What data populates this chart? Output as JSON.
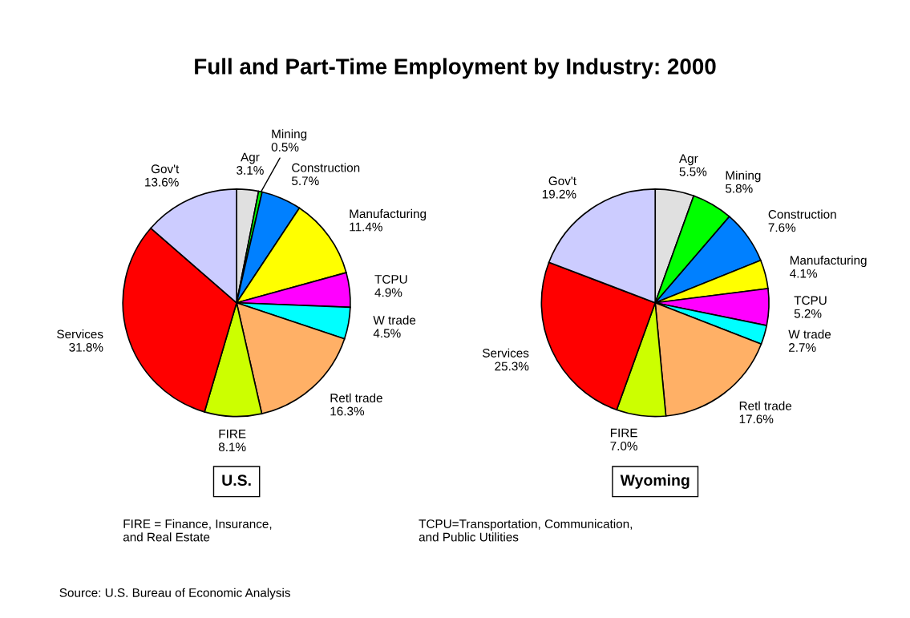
{
  "chart_data": [
    {
      "type": "pie",
      "title": "Full and Part-Time Employment by Industry: 2000",
      "subtitle": "U.S.",
      "categories": [
        "Agr",
        "Mining",
        "Construction",
        "Manufacturing",
        "TCPU",
        "W trade",
        "Retl trade",
        "FIRE",
        "Services",
        "Gov't"
      ],
      "values": [
        3.1,
        0.5,
        5.7,
        11.4,
        4.9,
        4.5,
        16.3,
        8.1,
        31.8,
        13.6
      ],
      "value_labels": [
        "3.1%",
        "0.5%",
        "5.7%",
        "11.4%",
        "4.9%",
        "4.5%",
        "16.3%",
        "8.1%",
        "31.8%",
        "13.6%"
      ],
      "colors": [
        "#e0e0e0",
        "#00ff00",
        "#0080ff",
        "#ffff00",
        "#ff00ff",
        "#00ffff",
        "#ffb066",
        "#ccff00",
        "#ff0000",
        "#ccccff"
      ],
      "annotations": [
        "FIRE = Finance, Insurance,\nand Real Estate",
        "Source: U.S. Bureau of Economic Analysis"
      ]
    },
    {
      "type": "pie",
      "subtitle": "Wyoming",
      "categories": [
        "Agr",
        "Mining",
        "Construction",
        "Manufacturing",
        "TCPU",
        "W trade",
        "Retl trade",
        "FIRE",
        "Services",
        "Gov't"
      ],
      "values": [
        5.5,
        5.8,
        7.6,
        4.1,
        5.2,
        2.7,
        17.6,
        7.0,
        25.3,
        19.2
      ],
      "value_labels": [
        "5.5%",
        "5.8%",
        "7.6%",
        "4.1%",
        "5.2%",
        "2.7%",
        "17.6%",
        "7.0%",
        "25.3%",
        "19.2%"
      ],
      "colors": [
        "#e0e0e0",
        "#00ff00",
        "#0080ff",
        "#ffff00",
        "#ff00ff",
        "#00ffff",
        "#ffb066",
        "#ccff00",
        "#ff0000",
        "#ccccff"
      ],
      "annotations": [
        "TCPU=Transportation, Communication,\nand Public Utilities"
      ]
    }
  ]
}
